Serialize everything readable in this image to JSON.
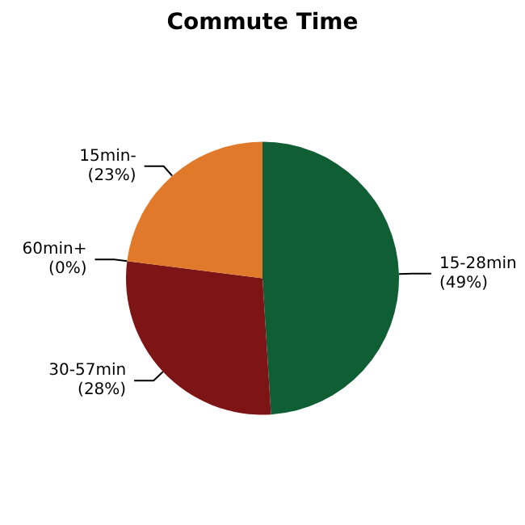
{
  "chart_data": {
    "type": "pie",
    "title": "Commute Time",
    "categories": [
      "15-28min",
      "30-57min",
      "60min+",
      "15min-"
    ],
    "values": [
      49,
      28,
      0,
      23
    ],
    "value_labels": [
      "(49%)",
      "(28%)",
      "(0%)",
      "(23%)"
    ],
    "colors": [
      "#0f5e34",
      "#7d1416",
      "#6a2a5a",
      "#e07a2a"
    ]
  }
}
